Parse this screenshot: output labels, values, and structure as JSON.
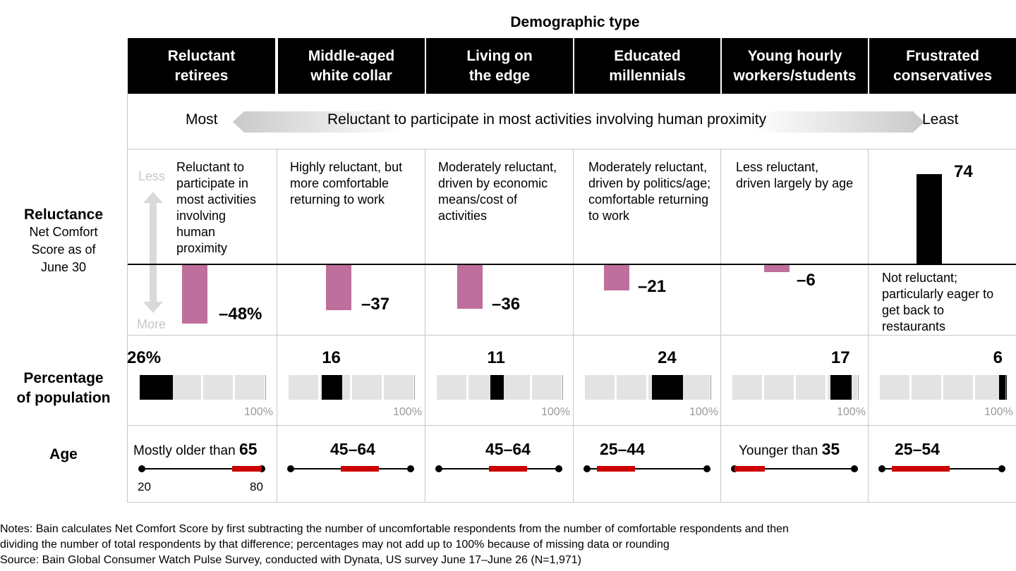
{
  "title": "Demographic type",
  "segments": [
    {
      "name_line1": "Reluctant",
      "name_line2": "retirees",
      "description": "Reluctant to participate in most activities involving human proximity",
      "score_label": "–48%",
      "percentage_label": "26%",
      "age_prefix": "Mostly older than",
      "age_bold": "65",
      "age_range_label": ""
    },
    {
      "name_line1": "Middle-aged",
      "name_line2": "white collar",
      "description": "Highly reluctant, but more comfortable returning to work",
      "score_label": "–37",
      "percentage_label": "16",
      "age_prefix": "",
      "age_bold": "45–64",
      "age_range_label": ""
    },
    {
      "name_line1": "Living on",
      "name_line2": "the edge",
      "description": "Moderately reluctant, driven by economic means/cost of activities",
      "score_label": "–36",
      "percentage_label": "11",
      "age_prefix": "",
      "age_bold": "45–64",
      "age_range_label": ""
    },
    {
      "name_line1": "Educated",
      "name_line2": "millennials",
      "description": "Moderately reluctant, driven by politics/age; comfortable returning to work",
      "score_label": "–21",
      "percentage_label": "24",
      "age_prefix": "",
      "age_bold": "25–44",
      "age_range_label": ""
    },
    {
      "name_line1": "Young hourly",
      "name_line2": "workers/students",
      "description": "Less reluctant, driven largely by age",
      "score_label": "–6",
      "percentage_label": "17",
      "age_prefix": "Younger than",
      "age_bold": "35",
      "age_range_label": ""
    },
    {
      "name_line1": "Frustrated",
      "name_line2": "conservatives",
      "description": "Not reluctant; particularly eager to get back to restaurants",
      "score_label": "74",
      "percentage_label": "6",
      "age_prefix": "",
      "age_bold": "25–54",
      "age_range_label": ""
    }
  ],
  "arrow": {
    "left": "Most",
    "center": "Reluctant to participate in most activities involving human proximity",
    "right": "Least"
  },
  "rows": {
    "reluctance_title": "Reluctance",
    "reluctance_sub1": "Net Comfort",
    "reluctance_sub2": "Score as of",
    "reluctance_sub3": "June 30",
    "less": "Less",
    "more": "More",
    "population_line1": "Percentage",
    "population_line2": "of population",
    "age": "Age",
    "hundred": "100%",
    "age_min": "20",
    "age_max": "80"
  },
  "notes": {
    "line1": "Notes: Bain calculates Net Comfort Score by first subtracting the number of uncomfortable respondents from the number of comfortable respondents and then",
    "line2": "dividing the number of total respondents by that difference; percentages may not add up to 100% because of missing data or rounding",
    "line3": "Source: Bain Global Consumer Watch Pulse Survey, conducted with Dynata, US survey June 17–June 26 (N=1,971)"
  },
  "colors": {
    "negative_bar": "#bf6f9b",
    "positive_bar": "#000000",
    "age_range": "#cc0000",
    "percent_fill": "#000000",
    "percent_track": "#e3e3e3"
  },
  "chart_data": {
    "type": "bar",
    "title": "Demographic type",
    "categories": [
      "Reluctant retirees",
      "Middle-aged white collar",
      "Living on the edge",
      "Educated millennials",
      "Young hourly workers/students",
      "Frustrated conservatives"
    ],
    "series": [
      {
        "name": "Net Comfort Score as of June 30",
        "values": [
          -48,
          -37,
          -36,
          -21,
          -6,
          74
        ]
      },
      {
        "name": "Percentage of population",
        "values": [
          26,
          16,
          11,
          24,
          17,
          6
        ]
      }
    ],
    "age_ranges": [
      [
        65,
        80
      ],
      [
        45,
        64
      ],
      [
        45,
        64
      ],
      [
        25,
        44
      ],
      [
        20,
        35
      ],
      [
        25,
        54
      ]
    ],
    "age_axis": [
      20,
      80
    ],
    "percentage_axis": [
      0,
      100
    ]
  }
}
